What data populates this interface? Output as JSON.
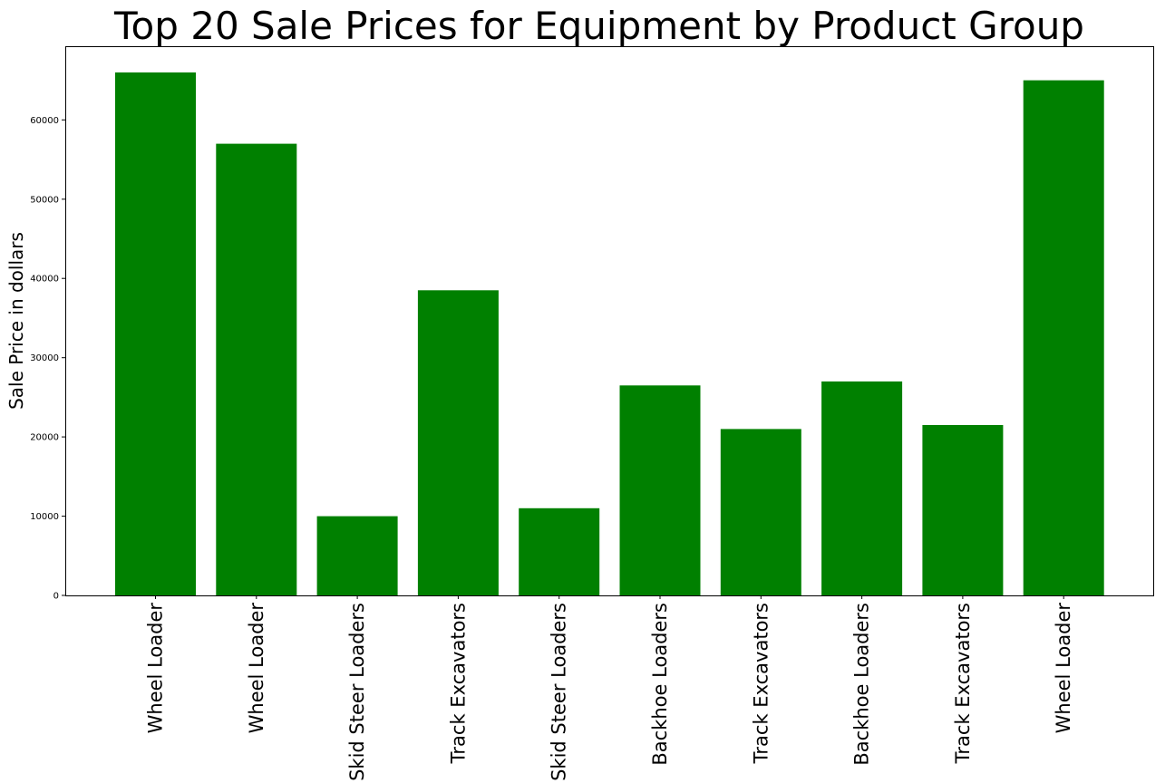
{
  "chart_data": {
    "type": "bar",
    "title": "Top 20 Sale Prices for Equipment by Product Group",
    "xlabel": "",
    "ylabel": "Sale Price in dollars",
    "categories": [
      "Wheel Loader",
      "Wheel Loader",
      "Skid Steer Loaders",
      "Track Excavators",
      "Skid Steer Loaders",
      "Backhoe Loaders",
      "Track Excavators",
      "Backhoe Loaders",
      "Track Excavators",
      "Wheel Loader"
    ],
    "values": [
      66000,
      57000,
      10000,
      38500,
      11000,
      26500,
      21000,
      27000,
      21500,
      65000
    ],
    "ylim": [
      0,
      69300
    ],
    "yticks": [
      0,
      10000,
      20000,
      30000,
      40000,
      50000,
      60000
    ],
    "ytick_labels": [
      "0",
      "10000",
      "20000",
      "30000",
      "40000",
      "50000",
      "60000"
    ],
    "bar_color": "#008000",
    "grid": false,
    "legend": "none"
  }
}
